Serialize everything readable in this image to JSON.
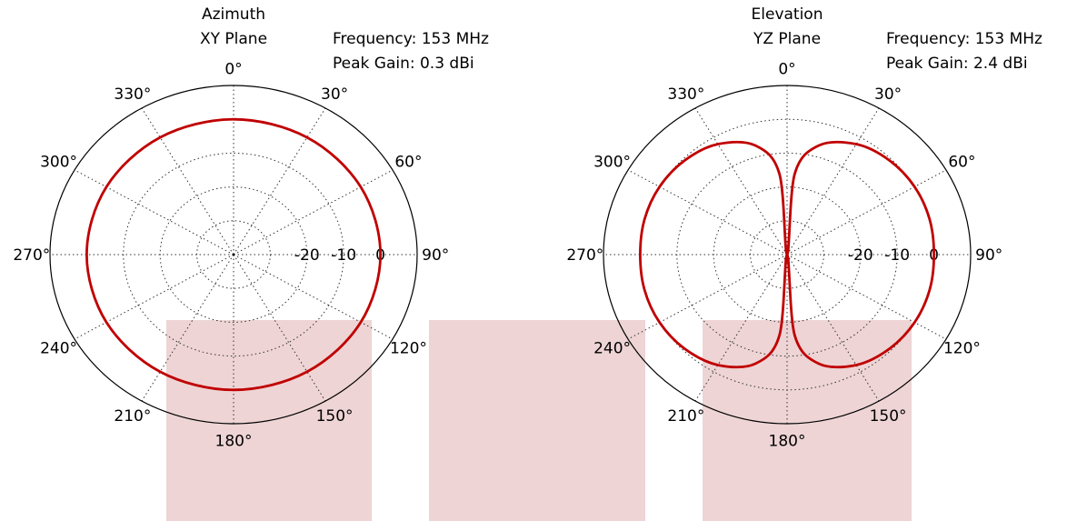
{
  "colors": {
    "trace": "#c00000",
    "overlay": "#eed4d5",
    "axis": "#000000",
    "grid": "#333333"
  },
  "overlays": [
    {
      "name": "overlay-left"
    },
    {
      "name": "overlay-middle"
    },
    {
      "name": "overlay-right"
    }
  ],
  "chart_data": [
    {
      "type": "polar-line",
      "title": "Azimuth",
      "subtitle": "XY Plane",
      "info": [
        "Frequency: 153 MHz",
        "Peak Gain: 0.3 dBi"
      ],
      "angle_labels": [
        "0°",
        "30°",
        "60°",
        "90°",
        "120°",
        "150°",
        "180°",
        "210°",
        "240°",
        "270°",
        "300°",
        "330°"
      ],
      "radial_labels": [
        "-20",
        "-10",
        "0"
      ],
      "radial_ticks_db": [
        -20,
        -10,
        0
      ],
      "r_range_db": [
        -40,
        10
      ],
      "grid": true,
      "series": [
        {
          "angles_deg": [
            0,
            30,
            60,
            90,
            120,
            150,
            180,
            210,
            240,
            270,
            300,
            330
          ],
          "gain_db": [
            0,
            0,
            0,
            0,
            0,
            0,
            0,
            0,
            0,
            0,
            0,
            0
          ]
        }
      ]
    },
    {
      "type": "polar-line",
      "title": "Elevation",
      "subtitle": "YZ Plane",
      "info": [
        "Frequency: 153 MHz",
        "Peak Gain: 2.4 dBi"
      ],
      "angle_labels": [
        "0°",
        "30°",
        "60°",
        "90°",
        "120°",
        "150°",
        "180°",
        "210°",
        "240°",
        "270°",
        "300°",
        "330°"
      ],
      "radial_labels": [
        "-20",
        "-10",
        "0"
      ],
      "radial_ticks_db": [
        -20,
        -10,
        0
      ],
      "r_range_db": [
        -40,
        10
      ],
      "grid": true,
      "series": [
        {
          "angles_deg": [
            0,
            5,
            15,
            30,
            45,
            60,
            75,
            90,
            105,
            120,
            135,
            150,
            165,
            175,
            180,
            185,
            195,
            210,
            225,
            240,
            255,
            270,
            285,
            300,
            315,
            330,
            345,
            355,
            360
          ],
          "gain_db": [
            -40,
            -16,
            -6.6,
            -2.3,
            -0.6,
            0.1,
            0.2,
            0,
            0.2,
            0.1,
            -0.6,
            -2.3,
            -6.6,
            -16,
            -40,
            -16,
            -6.6,
            -2.3,
            -0.6,
            0.1,
            0.2,
            0,
            0.2,
            0.1,
            -0.6,
            -2.3,
            -6.6,
            -16,
            -40
          ]
        }
      ]
    }
  ]
}
